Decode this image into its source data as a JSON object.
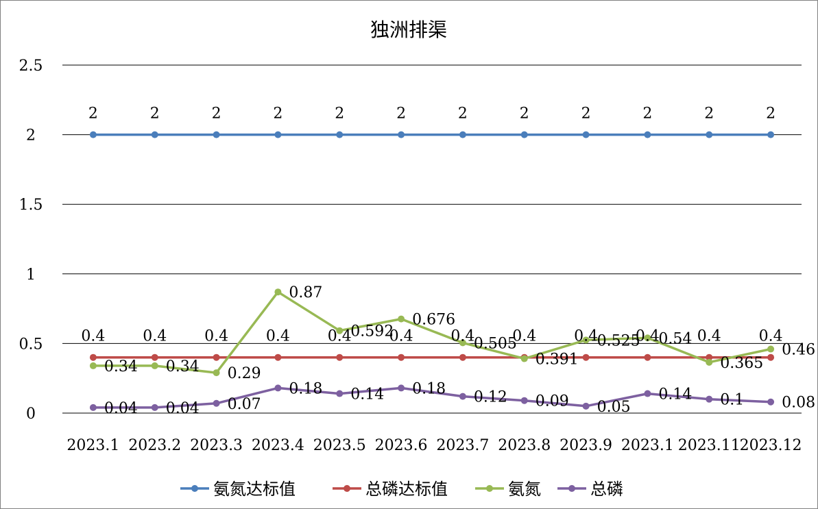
{
  "chart_data": {
    "type": "line",
    "title": "独洲排渠",
    "xlabel": "",
    "ylabel": "",
    "ylim": [
      0,
      2.5
    ],
    "yticks": [
      "0",
      "0.5",
      "1",
      "1.5",
      "2",
      "2.5"
    ],
    "categories": [
      "2023.1",
      "2023.2",
      "2023.3",
      "2023.4",
      "2023.5",
      "2023.6",
      "2023.7",
      "2023.8",
      "2023.9",
      "2023.1",
      "2023.11",
      "2023.12"
    ],
    "grid": true,
    "legend_position": "bottom",
    "series": [
      {
        "name": "氨氮达标值",
        "color": "#4a7ebb",
        "values": [
          2,
          2,
          2,
          2,
          2,
          2,
          2,
          2,
          2,
          2,
          2,
          2
        ],
        "labels": [
          "2",
          "2",
          "2",
          "2",
          "2",
          "2",
          "2",
          "2",
          "2",
          "2",
          "2",
          "2"
        ]
      },
      {
        "name": "总磷达标值",
        "color": "#be4b48",
        "values": [
          0.4,
          0.4,
          0.4,
          0.4,
          0.4,
          0.4,
          0.4,
          0.4,
          0.4,
          0.4,
          0.4,
          0.4
        ],
        "labels": [
          "0.4",
          "0.4",
          "0.4",
          "0.4",
          "0.4",
          "0.4",
          "0.4",
          "0.4",
          "0.4",
          "0.4",
          "0.4",
          "0.4"
        ]
      },
      {
        "name": "氨氮",
        "color": "#98b954",
        "values": [
          0.34,
          0.34,
          0.29,
          0.87,
          0.592,
          0.676,
          0.505,
          0.391,
          0.525,
          0.54,
          0.365,
          0.46
        ],
        "labels": [
          "0.34",
          "0.34",
          "0.29",
          "0.87",
          "0.592",
          "0.676",
          "0.505",
          "0.391",
          "0.525",
          "0.54",
          "0.365",
          "0.46"
        ]
      },
      {
        "name": "总磷",
        "color": "#7d60a0",
        "values": [
          0.04,
          0.04,
          0.07,
          0.18,
          0.14,
          0.18,
          0.12,
          0.09,
          0.05,
          0.14,
          0.1,
          0.08
        ],
        "labels": [
          "0.04",
          "0.04",
          "0.07",
          "0.18",
          "0.14",
          "0.18",
          "0.12",
          "0.09",
          "0.05",
          "0.14",
          "0.1",
          "0.08"
        ]
      }
    ]
  }
}
